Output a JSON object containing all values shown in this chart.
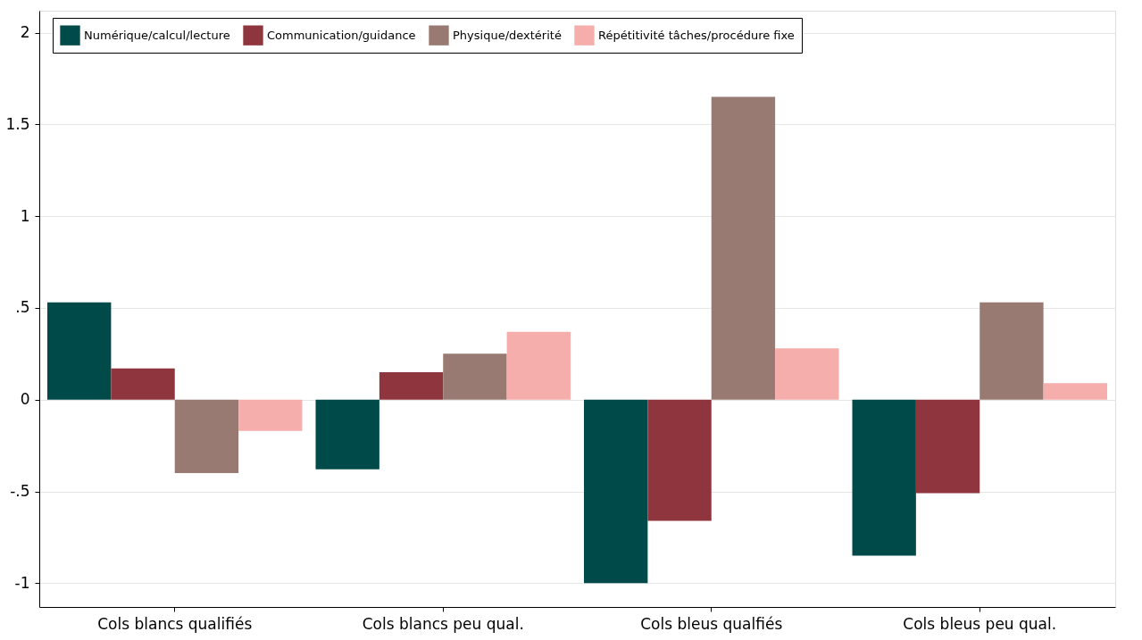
{
  "chart_data": {
    "type": "bar",
    "categories": [
      "Cols blancs qualifiés",
      "Cols blancs peu qual.",
      "Cols bleus qualfiés",
      "Cols bleus peu qual."
    ],
    "series": [
      {
        "name": "Numérique/calcul/lecture",
        "color": "#004a4a",
        "values": [
          0.53,
          -0.38,
          -1.0,
          -0.85
        ]
      },
      {
        "name": "Communication/guidance",
        "color": "#8f353d",
        "values": [
          0.17,
          0.15,
          -0.66,
          -0.51
        ]
      },
      {
        "name": "Physique/dextérité",
        "color": "#987a72",
        "values": [
          -0.4,
          0.25,
          1.65,
          0.53
        ]
      },
      {
        "name": "Répétitivité tâches/procédure fixe",
        "color": "#f5aeab",
        "values": [
          -0.17,
          0.37,
          0.28,
          0.09
        ]
      }
    ],
    "ylim": [
      -1.13,
      2.12
    ],
    "yticks": [
      {
        "value": -1,
        "label": "-1"
      },
      {
        "value": -0.5,
        "label": "-.5"
      },
      {
        "value": 0,
        "label": "0"
      },
      {
        "value": 0.5,
        "label": ".5"
      },
      {
        "value": 1,
        "label": "1"
      },
      {
        "value": 1.5,
        "label": "1.5"
      },
      {
        "value": 2,
        "label": "2"
      }
    ],
    "grid": "y",
    "legend": "top"
  }
}
